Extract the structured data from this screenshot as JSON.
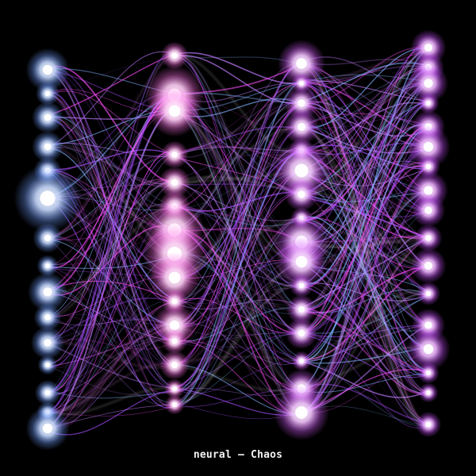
{
  "caption": "neural — Chaos",
  "palette": {
    "background": "#000000",
    "layer_colors": [
      "#7fa8ff",
      "#ff7be8",
      "#e06bff",
      "#d95cff"
    ],
    "edge_colors": [
      "#ff4dff",
      "#a64dff",
      "#7fb0ff",
      "#c07bff"
    ],
    "core": "#ffffff"
  }
}
